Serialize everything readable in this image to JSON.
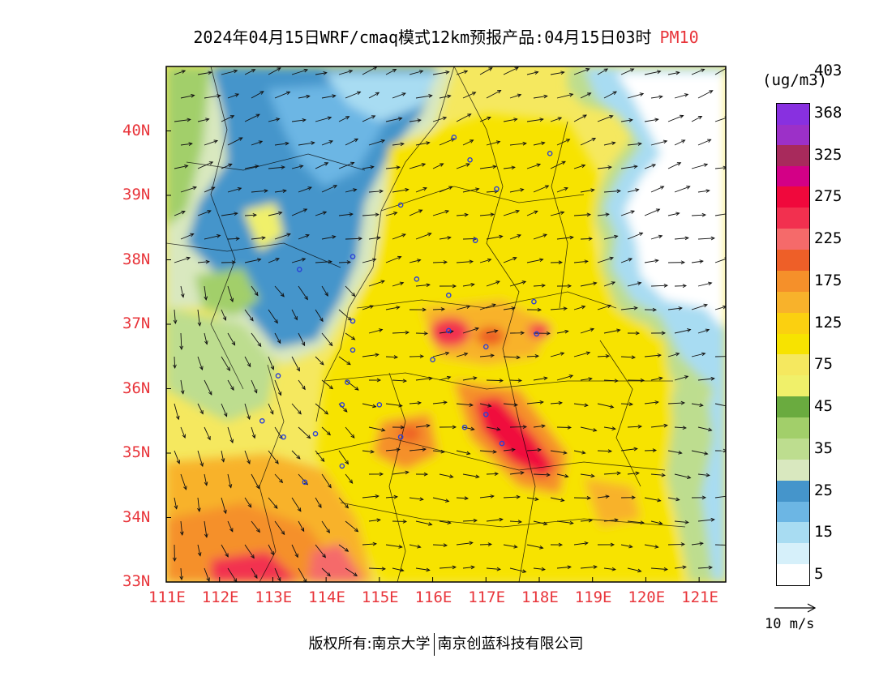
{
  "title": {
    "text": "2024年04月15日WRF/cmaq模式12km预报产品:04月15日03时",
    "pollutant": "PM10"
  },
  "map": {
    "lon_range": [
      111,
      121.5
    ],
    "lat_range": [
      33,
      41
    ],
    "lon_ticks": [
      {
        "lon": 111,
        "label": "111E"
      },
      {
        "lon": 112,
        "label": "112E"
      },
      {
        "lon": 113,
        "label": "113E"
      },
      {
        "lon": 114,
        "label": "114E"
      },
      {
        "lon": 115,
        "label": "115E"
      },
      {
        "lon": 116,
        "label": "116E"
      },
      {
        "lon": 117,
        "label": "117E"
      },
      {
        "lon": 118,
        "label": "118E"
      },
      {
        "lon": 119,
        "label": "119E"
      },
      {
        "lon": 120,
        "label": "120E"
      },
      {
        "lon": 121,
        "label": "121E"
      }
    ],
    "lat_ticks": [
      {
        "lat": 33,
        "label": "33N"
      },
      {
        "lat": 34,
        "label": "34N"
      },
      {
        "lat": 35,
        "label": "35N"
      },
      {
        "lat": 36,
        "label": "36N"
      },
      {
        "lat": 37,
        "label": "37N"
      },
      {
        "lat": 38,
        "label": "38N"
      },
      {
        "lat": 39,
        "label": "39N"
      },
      {
        "lat": 40,
        "label": "40N"
      }
    ],
    "hotspots": [
      {
        "lon": 117.3,
        "lat": 35.2,
        "level": "275",
        "note": "max PM10 band"
      },
      {
        "lon": 116.3,
        "lat": 36.9,
        "level": "275"
      },
      {
        "lon": 118.0,
        "lat": 36.9,
        "level": "275"
      },
      {
        "lon": 112.8,
        "lat": 33.2,
        "level": "275"
      },
      {
        "lon": 114.0,
        "lat": 33.2,
        "level": "225"
      }
    ],
    "stations": [
      [
        116.4,
        39.9
      ],
      [
        116.7,
        39.55
      ],
      [
        117.2,
        39.1
      ],
      [
        118.2,
        39.65
      ],
      [
        115.4,
        38.85
      ],
      [
        116.8,
        38.3
      ],
      [
        113.5,
        37.85
      ],
      [
        114.5,
        38.05
      ],
      [
        115.7,
        37.7
      ],
      [
        116.3,
        37.45
      ],
      [
        117.9,
        37.35
      ],
      [
        114.5,
        37.05
      ],
      [
        114.5,
        36.6
      ],
      [
        114.4,
        36.1
      ],
      [
        116.0,
        36.45
      ],
      [
        116.3,
        36.9
      ],
      [
        117.0,
        36.65
      ],
      [
        117.95,
        36.85
      ],
      [
        113.1,
        36.2
      ],
      [
        115.0,
        35.75
      ],
      [
        114.3,
        35.75
      ],
      [
        112.8,
        35.5
      ],
      [
        113.2,
        35.25
      ],
      [
        113.8,
        35.3
      ],
      [
        115.4,
        35.25
      ],
      [
        116.6,
        35.4
      ],
      [
        117.0,
        35.6
      ],
      [
        117.3,
        35.15
      ],
      [
        114.3,
        34.8
      ],
      [
        113.6,
        34.55
      ]
    ]
  },
  "legend": {
    "unit": "(ug/m3)",
    "colors": [
      "#ffffff",
      "#d6f0fa",
      "#a8dcf2",
      "#6cb6e4",
      "#4595cb",
      "#d9e8bf",
      "#bddd8f",
      "#a2cf6a",
      "#6aab3f",
      "#f0f06a",
      "#f5e85f",
      "#f7e300",
      "#fbd010",
      "#f8b22b",
      "#f5902a",
      "#ee5f28",
      "#f56a6a",
      "#f2304f",
      "#f0083c",
      "#d30086",
      "#a82a5c",
      "#9c30c8",
      "#8830e0"
    ],
    "labels": [
      "5",
      "15",
      "25",
      "35",
      "45",
      "75",
      "125",
      "175",
      "225",
      "275",
      "325",
      "368",
      "403"
    ],
    "label_positions": [
      1,
      3,
      5,
      7,
      9,
      11,
      13,
      15,
      17,
      19,
      21,
      23,
      25
    ]
  },
  "vector_reference": {
    "label": "10 m/s"
  },
  "footer": {
    "left": "版权所有:南京大学",
    "right": "南京创蓝科技有限公司"
  }
}
